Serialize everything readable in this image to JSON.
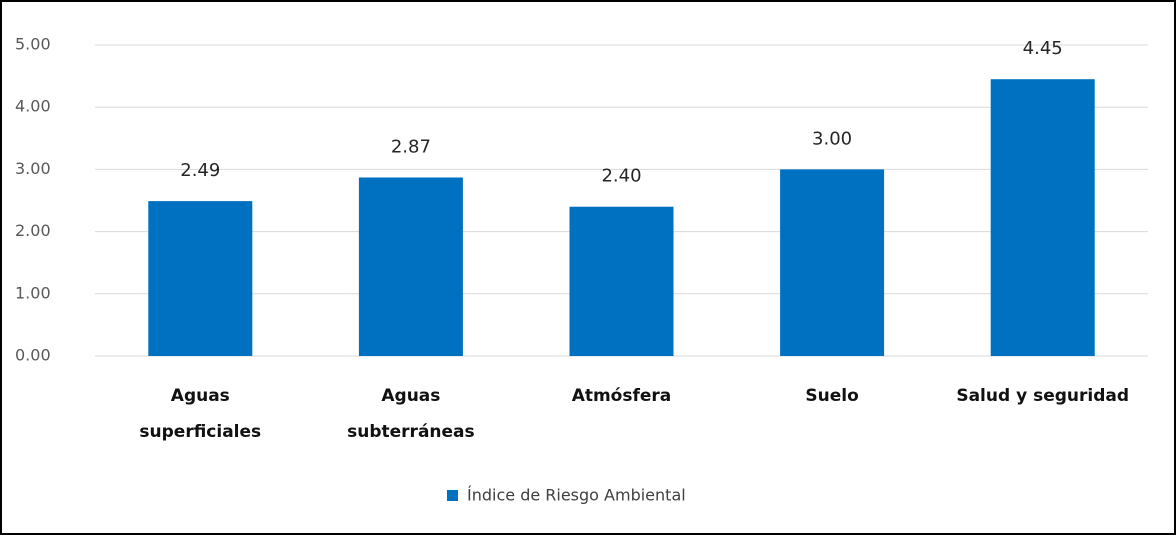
{
  "chart_data": {
    "type": "bar",
    "categories": [
      "Aguas\nsuperficiales",
      "Aguas\nsubterráneas",
      "Atmósfera",
      "Suelo",
      "Salud y seguridad"
    ],
    "series": [
      {
        "name": "Índice de Riesgo Ambiental",
        "color": "#0070c0",
        "values": [
          2.49,
          2.87,
          2.4,
          3.0,
          4.45
        ],
        "value_labels": [
          "2.49",
          "2.87",
          "2.40",
          "3.00",
          "4.45"
        ]
      }
    ],
    "ylim": [
      0,
      5
    ],
    "yticks": [
      {
        "value": 0,
        "label": "0.00"
      },
      {
        "value": 1,
        "label": "1.00"
      },
      {
        "value": 2,
        "label": "2.00"
      },
      {
        "value": 3,
        "label": "3.00"
      },
      {
        "value": 4,
        "label": "4.00"
      },
      {
        "value": 5,
        "label": "5.00"
      }
    ],
    "grid": true,
    "legend": "bottom"
  }
}
